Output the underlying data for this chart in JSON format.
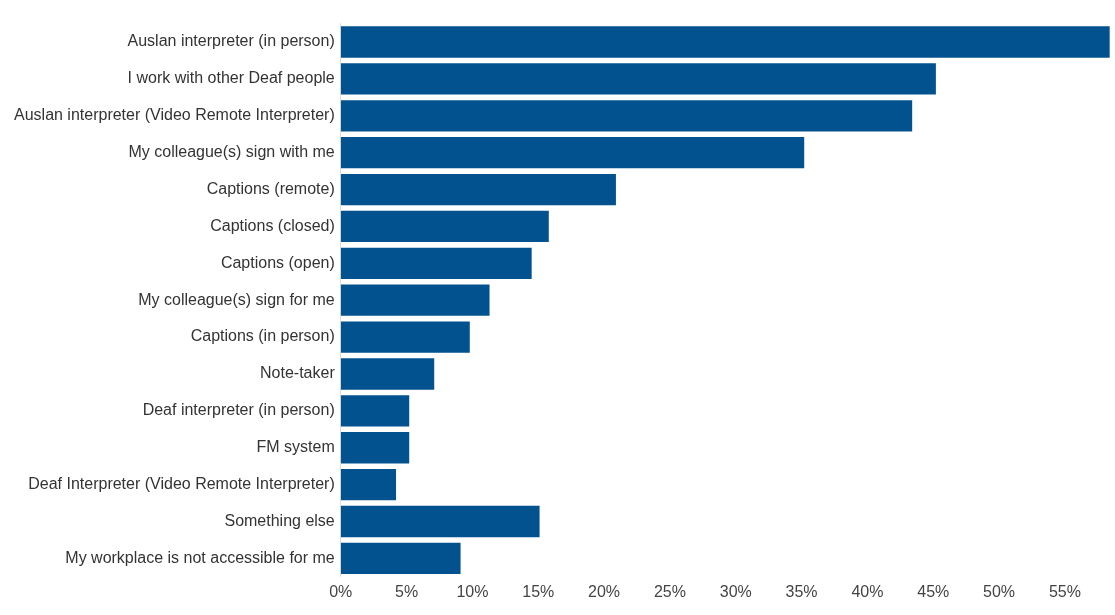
{
  "chart_data": {
    "type": "bar",
    "orientation": "horizontal",
    "categories": [
      "Auslan interpreter (in person)",
      "I work with other Deaf people",
      "Auslan interpreter (Video Remote Interpreter)",
      "My colleague(s) sign with me",
      "Captions (remote)",
      "Captions (closed)",
      "Captions (open)",
      "My colleague(s) sign for me",
      "Captions (in person)",
      "Note-taker",
      "Deaf interpreter (in person)",
      "FM system",
      "Deaf Interpreter (Video Remote Interpreter)",
      "Something else",
      "My workplace is not accessible for me"
    ],
    "values": [
      58.4,
      45.2,
      43.4,
      35.2,
      20.9,
      15.8,
      14.5,
      11.3,
      9.8,
      7.1,
      5.2,
      5.2,
      4.2,
      15.1,
      9.1
    ],
    "color": "#02528f",
    "xlim": [
      0,
      58.5
    ],
    "xticks": [
      {
        "value": 0,
        "label": "0%"
      },
      {
        "value": 5,
        "label": "5%"
      },
      {
        "value": 10,
        "label": "10%"
      },
      {
        "value": 15,
        "label": "15%"
      },
      {
        "value": 20,
        "label": "20%"
      },
      {
        "value": 25,
        "label": "25%"
      },
      {
        "value": 30,
        "label": "30%"
      },
      {
        "value": 35,
        "label": "35%"
      },
      {
        "value": 40,
        "label": "40%"
      },
      {
        "value": 45,
        "label": "45%"
      },
      {
        "value": 50,
        "label": "50%"
      },
      {
        "value": 55,
        "label": "55%"
      }
    ]
  }
}
